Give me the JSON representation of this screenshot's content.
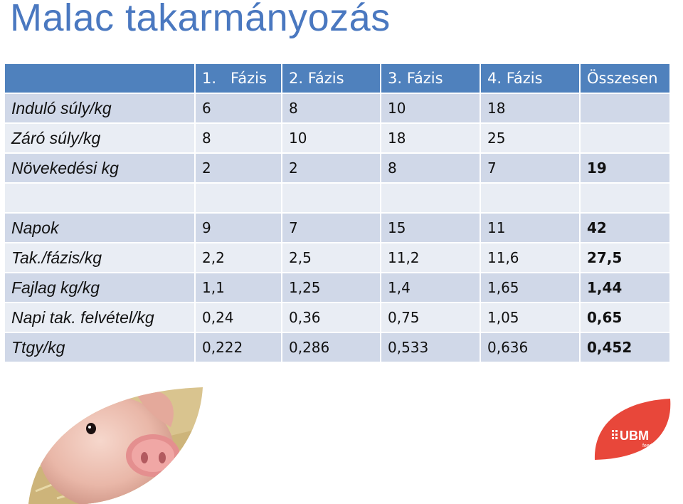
{
  "title": "Malac takarmányozás",
  "headers": [
    "",
    "1.   Fázis",
    "2. Fázis",
    "3. Fázis",
    "4. Fázis",
    "Összesen"
  ],
  "rows": [
    {
      "label": "Induló súly/kg",
      "cells": [
        "6",
        "8",
        "10",
        "18"
      ],
      "total": ""
    },
    {
      "label": "Záró súly/kg",
      "cells": [
        "8",
        "10",
        "18",
        "25"
      ],
      "total": ""
    },
    {
      "label": "Növekedési kg",
      "cells": [
        "2",
        "2",
        "8",
        "7"
      ],
      "total": "19"
    },
    {
      "label": "",
      "cells": [
        "",
        "",
        "",
        ""
      ],
      "total": ""
    },
    {
      "label": "Napok",
      "cells": [
        "9",
        "7",
        "15",
        "11"
      ],
      "total": "42"
    },
    {
      "label": "Tak./fázis/kg",
      "cells": [
        "2,2",
        "2,5",
        "11,2",
        "11,6"
      ],
      "total": "27,5"
    },
    {
      "label": "Fajlag kg/kg",
      "cells": [
        "1,1",
        "1,25",
        "1,4",
        "1,65"
      ],
      "total": "1,44"
    },
    {
      "label": "Napi tak. felvétel/kg",
      "cells": [
        "0,24",
        "0,36",
        "0,75",
        "1,05"
      ],
      "total": "0,65"
    },
    {
      "label": "Ttgy/kg",
      "cells": [
        "0,222",
        "0,286",
        "0,533",
        "0,636"
      ],
      "total": "0,452"
    }
  ],
  "logo": {
    "brand": "UBM",
    "sub": "feed",
    "color": "#e8473a"
  },
  "colors": {
    "title": "#4a78c0",
    "header": "#4f81bd",
    "row_dark": "#d0d8e8",
    "row_light": "#e9edf4"
  }
}
